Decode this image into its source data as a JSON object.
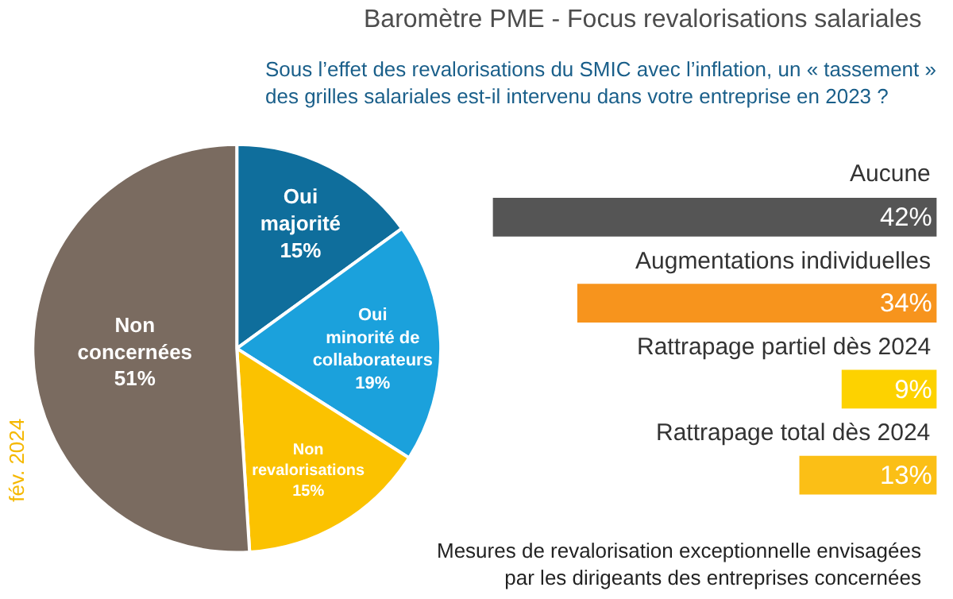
{
  "chart_data": [
    {
      "type": "pie",
      "categories": [
        "Oui majorité",
        "Oui minorité de collaborateurs",
        "Non revalorisations",
        "Non concernées"
      ],
      "values": [
        15,
        19,
        15,
        51
      ],
      "value_labels": [
        "15%",
        "19%",
        "15%",
        "51%"
      ],
      "colors": [
        "#0f6e9c",
        "#1ba1dc",
        "#fbc200",
        "#7a6b60"
      ],
      "legend": false,
      "annotations": [
        "fév. 2024"
      ]
    },
    {
      "type": "bar",
      "orientation": "horizontal",
      "title": "Baromètre PME - Focus revalorisations salariales",
      "subtitle": "Sous l’effet des revalorisations du SMIC avec l’inflation, un « tassement » des grilles salariales est-il intervenu dans votre entreprise en 2023 ?",
      "categories": [
        "Aucune",
        "Augmentations individuelles",
        "Rattrapage partiel dès 2024",
        "Rattrapage total dès 2024"
      ],
      "values": [
        42,
        34,
        9,
        13
      ],
      "value_labels": [
        "42%",
        "34%",
        "9%",
        "13%"
      ],
      "colors": [
        "#555555",
        "#f7941d",
        "#fdd200",
        "#fbbf16"
      ],
      "xlim": [
        42,
        0
      ],
      "legend": false,
      "annotations": [
        "Mesures de revalorisation exceptionnelle envisagées par les dirigeants des entreprises concernées"
      ]
    }
  ]
}
